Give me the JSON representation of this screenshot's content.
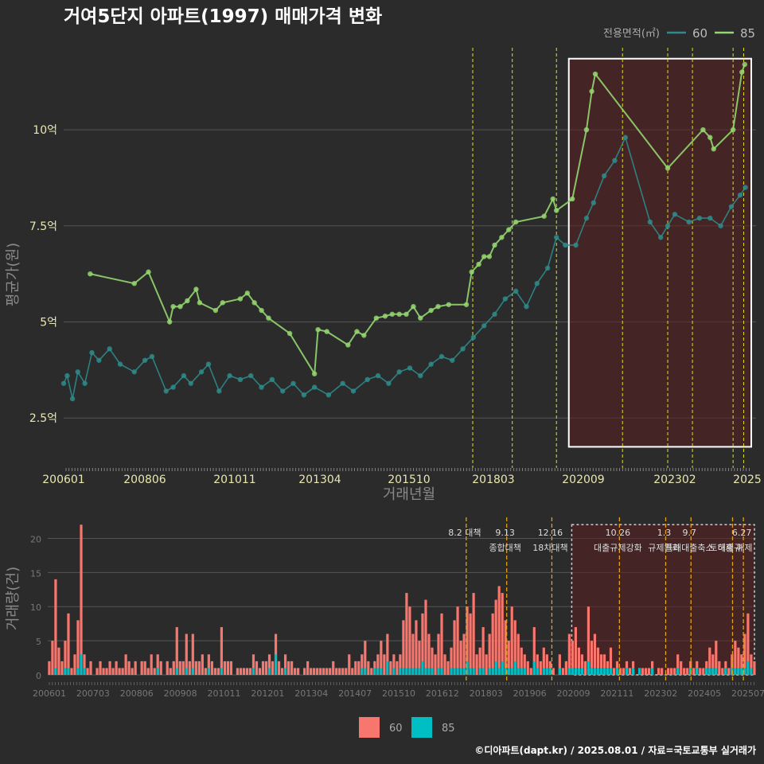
{
  "chart_data": [
    {
      "type": "line",
      "title": "거여5단지 아파트(1997) 매매가격 변화",
      "xlabel": "거래년월",
      "ylabel": "평균가(원)",
      "x_tick_labels": [
        "200601",
        "200806",
        "201011",
        "201304",
        "201510",
        "201803",
        "202009",
        "202302",
        "2025"
      ],
      "y_ticks": [
        {
          "value": 2.5,
          "label": "2.5억"
        },
        {
          "value": 5,
          "label": "5억"
        },
        {
          "value": 7.5,
          "label": "7.5억"
        },
        {
          "value": 10,
          "label": "10억"
        }
      ],
      "x_range": [
        2006.0,
        2025.6
      ],
      "y_range": [
        1.2,
        12.3
      ],
      "legend": {
        "title": "전용면적(㎡)",
        "placement": "top-right",
        "entries": [
          "60",
          "85"
        ]
      },
      "colors": {
        "60": "#2e8b8b",
        "85": "#93d66f",
        "highlight_fill": "#5a1f1f",
        "vline": "#e0e020"
      },
      "highlight_range": [
        2020.3,
        2025.6
      ],
      "policy_dates": [
        2017.58,
        2018.7,
        2019.95,
        2021.82,
        2023.1,
        2023.8,
        2024.95,
        2025.25
      ],
      "series": [
        {
          "name": "85",
          "points": [
            [
              2006.75,
              6.25
            ],
            [
              2008.0,
              6.0
            ],
            [
              2008.4,
              6.3
            ],
            [
              2009.0,
              5.0
            ],
            [
              2009.1,
              5.4
            ],
            [
              2009.3,
              5.4
            ],
            [
              2009.5,
              5.55
            ],
            [
              2009.75,
              5.85
            ],
            [
              2009.85,
              5.5
            ],
            [
              2010.3,
              5.3
            ],
            [
              2010.5,
              5.5
            ],
            [
              2011.0,
              5.6
            ],
            [
              2011.2,
              5.75
            ],
            [
              2011.4,
              5.5
            ],
            [
              2011.6,
              5.3
            ],
            [
              2011.8,
              5.1
            ],
            [
              2012.4,
              4.7
            ],
            [
              2013.1,
              3.65
            ],
            [
              2013.2,
              4.8
            ],
            [
              2013.45,
              4.75
            ],
            [
              2014.05,
              4.4
            ],
            [
              2014.3,
              4.75
            ],
            [
              2014.5,
              4.65
            ],
            [
              2014.85,
              5.1
            ],
            [
              2015.1,
              5.15
            ],
            [
              2015.3,
              5.2
            ],
            [
              2015.5,
              5.2
            ],
            [
              2015.7,
              5.2
            ],
            [
              2015.9,
              5.4
            ],
            [
              2016.1,
              5.1
            ],
            [
              2016.4,
              5.3
            ],
            [
              2016.6,
              5.4
            ],
            [
              2016.9,
              5.45
            ],
            [
              2017.4,
              5.45
            ],
            [
              2017.55,
              6.3
            ],
            [
              2017.75,
              6.5
            ],
            [
              2017.9,
              6.7
            ],
            [
              2018.05,
              6.7
            ],
            [
              2018.2,
              7.0
            ],
            [
              2018.4,
              7.2
            ],
            [
              2018.6,
              7.4
            ],
            [
              2018.8,
              7.6
            ],
            [
              2019.6,
              7.75
            ],
            [
              2019.85,
              8.2
            ],
            [
              2019.95,
              7.9
            ],
            [
              2020.4,
              8.2
            ],
            [
              2020.8,
              10.0
            ],
            [
              2020.95,
              11.0
            ],
            [
              2021.05,
              11.45
            ],
            [
              2023.1,
              9.0
            ],
            [
              2024.1,
              10.0
            ],
            [
              2024.3,
              9.8
            ],
            [
              2024.4,
              9.5
            ],
            [
              2024.95,
              10.0
            ],
            [
              2025.2,
              11.5
            ],
            [
              2025.28,
              11.7
            ]
          ]
        },
        {
          "name": "60",
          "points": [
            [
              2006.0,
              3.4
            ],
            [
              2006.1,
              3.6
            ],
            [
              2006.25,
              3.0
            ],
            [
              2006.4,
              3.7
            ],
            [
              2006.6,
              3.4
            ],
            [
              2006.8,
              4.2
            ],
            [
              2007.0,
              4.0
            ],
            [
              2007.3,
              4.3
            ],
            [
              2007.6,
              3.9
            ],
            [
              2008.0,
              3.7
            ],
            [
              2008.3,
              4.0
            ],
            [
              2008.5,
              4.1
            ],
            [
              2008.9,
              3.2
            ],
            [
              2009.1,
              3.3
            ],
            [
              2009.4,
              3.6
            ],
            [
              2009.6,
              3.4
            ],
            [
              2009.9,
              3.7
            ],
            [
              2010.1,
              3.9
            ],
            [
              2010.4,
              3.2
            ],
            [
              2010.7,
              3.6
            ],
            [
              2011.0,
              3.5
            ],
            [
              2011.3,
              3.6
            ],
            [
              2011.6,
              3.3
            ],
            [
              2011.9,
              3.5
            ],
            [
              2012.2,
              3.2
            ],
            [
              2012.5,
              3.4
            ],
            [
              2012.8,
              3.1
            ],
            [
              2013.1,
              3.3
            ],
            [
              2013.5,
              3.1
            ],
            [
              2013.9,
              3.4
            ],
            [
              2014.2,
              3.2
            ],
            [
              2014.6,
              3.5
            ],
            [
              2014.9,
              3.6
            ],
            [
              2015.2,
              3.4
            ],
            [
              2015.5,
              3.7
            ],
            [
              2015.8,
              3.8
            ],
            [
              2016.1,
              3.6
            ],
            [
              2016.4,
              3.9
            ],
            [
              2016.7,
              4.1
            ],
            [
              2017.0,
              4.0
            ],
            [
              2017.3,
              4.3
            ],
            [
              2017.6,
              4.6
            ],
            [
              2017.9,
              4.9
            ],
            [
              2018.2,
              5.2
            ],
            [
              2018.5,
              5.6
            ],
            [
              2018.8,
              5.8
            ],
            [
              2019.1,
              5.4
            ],
            [
              2019.4,
              6.0
            ],
            [
              2019.7,
              6.4
            ],
            [
              2019.95,
              7.2
            ],
            [
              2020.2,
              7.0
            ],
            [
              2020.5,
              7.0
            ],
            [
              2020.8,
              7.7
            ],
            [
              2021.0,
              8.1
            ],
            [
              2021.3,
              8.8
            ],
            [
              2021.6,
              9.2
            ],
            [
              2021.9,
              9.8
            ],
            [
              2022.6,
              7.6
            ],
            [
              2022.9,
              7.2
            ],
            [
              2023.1,
              7.5
            ],
            [
              2023.3,
              7.8
            ],
            [
              2023.7,
              7.6
            ],
            [
              2024.0,
              7.7
            ],
            [
              2024.3,
              7.7
            ],
            [
              2024.6,
              7.5
            ],
            [
              2024.9,
              8.0
            ],
            [
              2025.15,
              8.3
            ],
            [
              2025.3,
              8.5
            ]
          ]
        }
      ]
    },
    {
      "type": "bar",
      "ylabel": "거래량(건)",
      "x_tick_labels": [
        "200601",
        "200703",
        "200806",
        "200908",
        "201011",
        "201201",
        "201304",
        "201407",
        "201510",
        "201612",
        "201803",
        "201906",
        "202009",
        "202111",
        "202302",
        "202405",
        "202507"
      ],
      "y_ticks": [
        0,
        5,
        10,
        15,
        20
      ],
      "y_range": [
        0,
        22.5
      ],
      "legend": {
        "placement": "bottom",
        "entries": [
          "60",
          "85"
        ]
      },
      "colors": {
        "60": "#f7766d",
        "85": "#00bfc4",
        "highlight_fill": "#5a1f1f",
        "vline": "#e0a020"
      },
      "highlight_range": [
        2020.5,
        2025.6
      ],
      "policy_annotations": [
        {
          "date": 2017.58,
          "label": "8.2 대책",
          "label2": ""
        },
        {
          "date": 2018.7,
          "label": "9.13",
          "label2": "종합대책"
        },
        {
          "date": 2019.95,
          "label": "12.16",
          "label2": "18차대책"
        },
        {
          "date": 2021.82,
          "label": "10.26",
          "label2": "대출규제강화"
        },
        {
          "date": 2023.1,
          "label": "1.3",
          "label2": "규제완화"
        },
        {
          "date": 2023.8,
          "label": "9.7",
          "label2": "특례대출축소"
        },
        {
          "date": 2024.95,
          "label": "",
          "label2": "토허제 해제"
        },
        {
          "date": 2025.25,
          "label": "6.27",
          "label2": "대출규"
        }
      ],
      "series": [
        {
          "name": "60",
          "values": [
            2,
            5,
            14,
            4,
            2,
            5,
            9,
            1,
            3,
            8,
            22,
            3,
            1,
            2,
            0,
            1,
            2,
            1,
            1,
            2,
            1,
            2,
            1,
            1,
            3,
            2,
            1,
            2,
            0,
            2,
            2,
            1,
            3,
            1,
            3,
            2,
            0,
            2,
            1,
            2,
            7,
            2,
            2,
            6,
            2,
            6,
            2,
            2,
            3,
            1,
            3,
            2,
            1,
            1,
            7,
            2,
            2,
            2,
            0,
            1,
            1,
            1,
            1,
            1,
            3,
            2,
            1,
            2,
            2,
            3,
            2,
            6,
            2,
            1,
            3,
            2,
            2,
            1,
            1,
            0,
            1,
            2,
            1,
            1,
            1,
            1,
            1,
            1,
            1,
            2,
            1,
            1,
            1,
            1,
            3,
            1,
            2,
            2,
            3,
            5,
            2,
            1,
            2,
            3,
            5,
            3,
            6,
            2,
            3,
            2,
            3,
            8,
            12,
            10,
            6,
            8,
            5,
            9,
            11,
            6,
            4,
            3,
            6,
            9,
            3,
            2,
            4,
            8,
            10,
            5,
            6,
            10,
            9,
            12,
            3,
            4,
            7,
            3,
            6,
            9,
            11,
            13,
            12,
            8,
            5,
            10,
            8,
            6,
            4,
            3,
            2,
            1,
            7,
            3,
            2,
            4,
            3,
            2,
            1,
            0,
            3,
            1,
            2,
            6,
            5,
            7,
            4,
            3,
            2,
            10,
            5,
            6,
            4,
            3,
            3,
            2,
            4,
            1,
            2,
            1,
            1,
            2,
            1,
            2,
            0,
            1,
            1,
            1,
            1,
            2,
            0,
            1,
            1,
            0,
            1,
            1,
            1,
            3,
            2,
            1,
            1,
            2,
            1,
            2,
            1,
            1,
            2,
            4,
            3,
            5,
            2,
            1,
            2,
            1,
            3,
            5,
            4,
            3,
            6,
            9,
            3,
            2
          ]
        },
        {
          "name": "85",
          "values": [
            0,
            0,
            1,
            0,
            0,
            1,
            1,
            0,
            0,
            1,
            3,
            1,
            0,
            0,
            0,
            0,
            0,
            0,
            0,
            0,
            0,
            0,
            0,
            0,
            0,
            0,
            0,
            0,
            0,
            0,
            0,
            0,
            0,
            0,
            1,
            0,
            0,
            0,
            0,
            0,
            1,
            0,
            0,
            1,
            0,
            1,
            0,
            0,
            0,
            0,
            1,
            0,
            0,
            0,
            1,
            0,
            0,
            0,
            0,
            0,
            0,
            0,
            0,
            0,
            1,
            0,
            0,
            0,
            0,
            1,
            0,
            3,
            0,
            0,
            1,
            0,
            0,
            0,
            0,
            0,
            0,
            0,
            0,
            0,
            0,
            0,
            0,
            0,
            0,
            0,
            0,
            0,
            0,
            0,
            0,
            0,
            0,
            0,
            1,
            1,
            0,
            0,
            1,
            1,
            1,
            0,
            2,
            0,
            1,
            0,
            1,
            1,
            1,
            1,
            1,
            1,
            1,
            2,
            1,
            1,
            1,
            0,
            1,
            1,
            0,
            0,
            1,
            1,
            1,
            1,
            1,
            2,
            1,
            1,
            0,
            1,
            1,
            0,
            1,
            1,
            2,
            1,
            2,
            1,
            1,
            1,
            2,
            1,
            1,
            1,
            0,
            0,
            2,
            1,
            0,
            1,
            1,
            1,
            0,
            0,
            1,
            0,
            0,
            1,
            1,
            1,
            1,
            1,
            0,
            2,
            1,
            1,
            1,
            1,
            1,
            1,
            1,
            0,
            1,
            0,
            0,
            1,
            0,
            1,
            0,
            1,
            0,
            0,
            0,
            1,
            0,
            0,
            0,
            0,
            0,
            0,
            0,
            1,
            0,
            0,
            0,
            1,
            0,
            1,
            0,
            0,
            1,
            1,
            1,
            1,
            0,
            0,
            1,
            0,
            1,
            1,
            1,
            1,
            1,
            2,
            1,
            0
          ]
        }
      ]
    }
  ],
  "footer": "©디아파트(dapt.kr) / 2025.08.01 / 자료=국토교통부 실거래가"
}
